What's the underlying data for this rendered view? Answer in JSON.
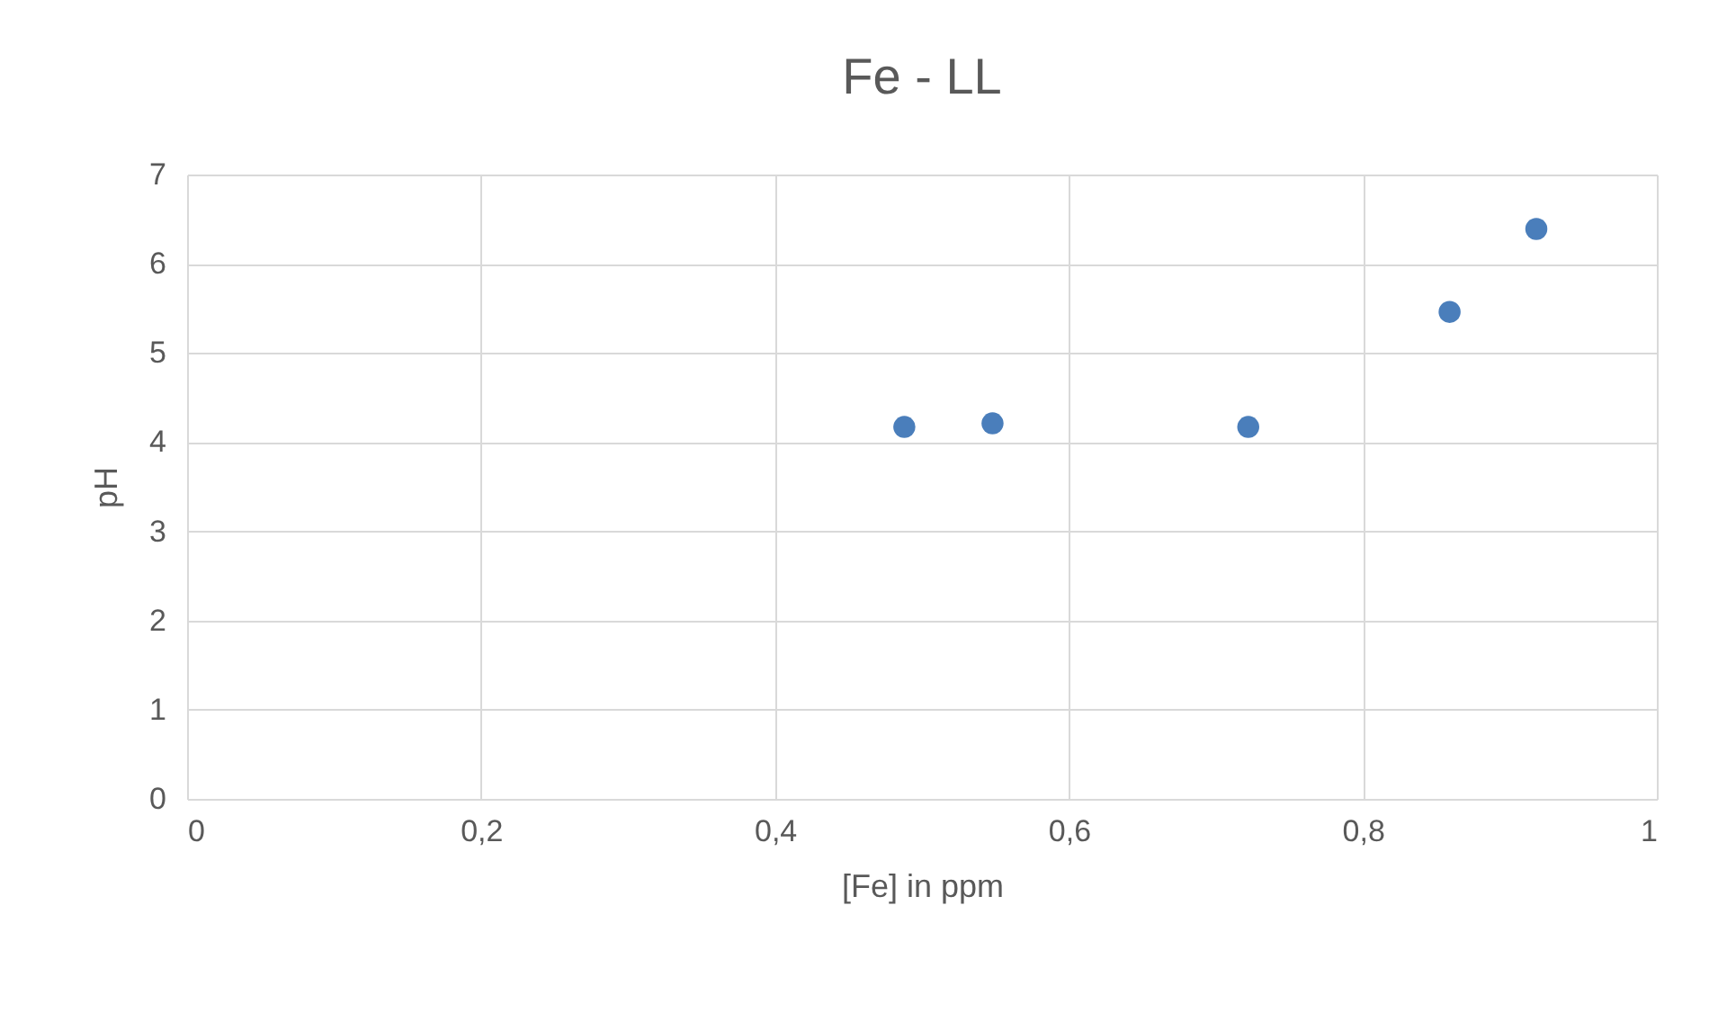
{
  "chart_data": {
    "type": "scatter",
    "title": "Fe - LL",
    "xlabel": "[Fe]  in ppm",
    "ylabel": "pH",
    "x": [
      0.488,
      0.548,
      0.722,
      0.859,
      0.918
    ],
    "series": [
      {
        "color": "#4a7ebb",
        "values": [
          4.17,
          4.21,
          4.17,
          5.46,
          6.39
        ]
      }
    ],
    "xlim": [
      0,
      1
    ],
    "xticks": [
      0,
      {
        "value": 0.2,
        "label": "0,2"
      },
      {
        "value": 0.4,
        "label": "0,4"
      },
      {
        "value": 0.6,
        "label": "0,6"
      },
      {
        "value": 0.8,
        "label": "0,8"
      },
      1
    ],
    "ylim": [
      0,
      7
    ],
    "yticks": [
      0,
      1,
      2,
      3,
      4,
      5,
      6,
      7
    ],
    "grid": true,
    "marker": "circle",
    "legend": false
  }
}
